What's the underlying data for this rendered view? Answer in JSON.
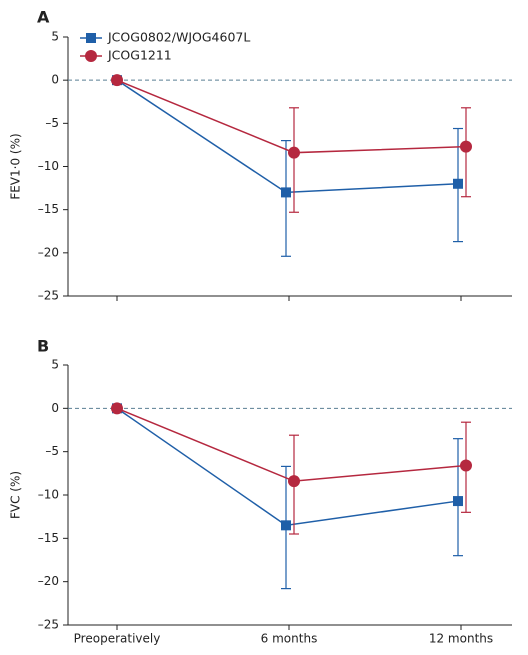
{
  "chart_data": [
    {
      "type": "line",
      "panel": "A",
      "ylabel": "FEV1·0 (%)",
      "xlabel": "",
      "categories": [
        "Preoperatively",
        "6 months",
        "12 months"
      ],
      "ylim": [
        -25,
        5
      ],
      "yticks": [
        5,
        0,
        -5,
        -10,
        -15,
        -20,
        -25
      ],
      "ytick_labels": [
        "5",
        "0",
        "–5",
        "–10",
        "–15",
        "–20",
        "–25"
      ],
      "reference_line": 0,
      "legend": {
        "placement": "top-left"
      },
      "series": [
        {
          "name": "JCOG0802/WJOG4607L",
          "marker": "square",
          "color": "#1f5fa8",
          "values": [
            0,
            -13.0,
            -12.0
          ],
          "error_low": [
            0,
            -20.4,
            -18.7
          ],
          "error_high": [
            0,
            -7.0,
            -5.6
          ]
        },
        {
          "name": "JCOG1211",
          "marker": "circle",
          "color": "#b5283f",
          "values": [
            0,
            -8.4,
            -7.7
          ],
          "error_low": [
            0,
            -15.3,
            -13.5
          ],
          "error_high": [
            0,
            -3.2,
            -3.2
          ]
        }
      ]
    },
    {
      "type": "line",
      "panel": "B",
      "ylabel": "FVC (%)",
      "xlabel": "",
      "categories": [
        "Preoperatively",
        "6 months",
        "12 months"
      ],
      "ylim": [
        -25,
        5
      ],
      "yticks": [
        5,
        0,
        -5,
        -10,
        -15,
        -20,
        -25
      ],
      "ytick_labels": [
        "5",
        "0",
        "–5",
        "–10",
        "–15",
        "–20",
        "–25"
      ],
      "reference_line": 0,
      "series": [
        {
          "name": "JCOG0802/WJOG4607L",
          "marker": "square",
          "color": "#1f5fa8",
          "values": [
            0,
            -13.5,
            -10.7
          ],
          "error_low": [
            0,
            -20.8,
            -17.0
          ],
          "error_high": [
            0,
            -6.7,
            -3.5
          ]
        },
        {
          "name": "JCOG1211",
          "marker": "circle",
          "color": "#b5283f",
          "values": [
            0,
            -8.4,
            -6.6
          ],
          "error_low": [
            0,
            -14.5,
            -12.0
          ],
          "error_high": [
            0,
            -3.1,
            -1.6
          ]
        }
      ]
    }
  ]
}
